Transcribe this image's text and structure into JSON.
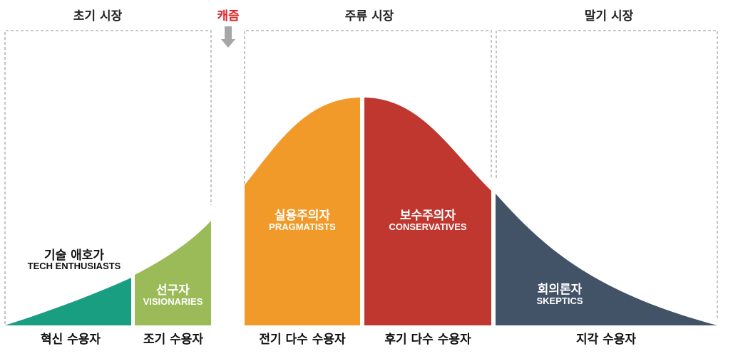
{
  "markets": {
    "early": "초기 시장",
    "chasm": "캐즘",
    "mainstream": "주류 시장",
    "late": "말기 시장"
  },
  "segments": {
    "innovators": {
      "persona_ko": "기술 애호가",
      "persona_en": "TECH ENTHUSIASTS",
      "group": "혁신 수용자",
      "color": "#1a9e82"
    },
    "early_adopters": {
      "persona_ko": "선구자",
      "persona_en": "VISIONARIES",
      "group": "조기 수용자",
      "color": "#9bbb59"
    },
    "early_majority": {
      "persona_ko": "실용주의자",
      "persona_en": "PRAGMATISTS",
      "group": "전기 다수 수용자",
      "color": "#f29a29"
    },
    "late_majority": {
      "persona_ko": "보수주의자",
      "persona_en": "CONSERVATIVES",
      "group": "후기 다수 수용자",
      "color": "#c0372f"
    },
    "laggards": {
      "persona_ko": "회의론자",
      "persona_en": "SKEPTICS",
      "group": "지각 수용자",
      "color": "#425368"
    }
  },
  "colors": {
    "chasm_arrow": "#a6a6a6",
    "chasm_text": "#e0242a",
    "dashed_box": "#a6a6a6"
  }
}
